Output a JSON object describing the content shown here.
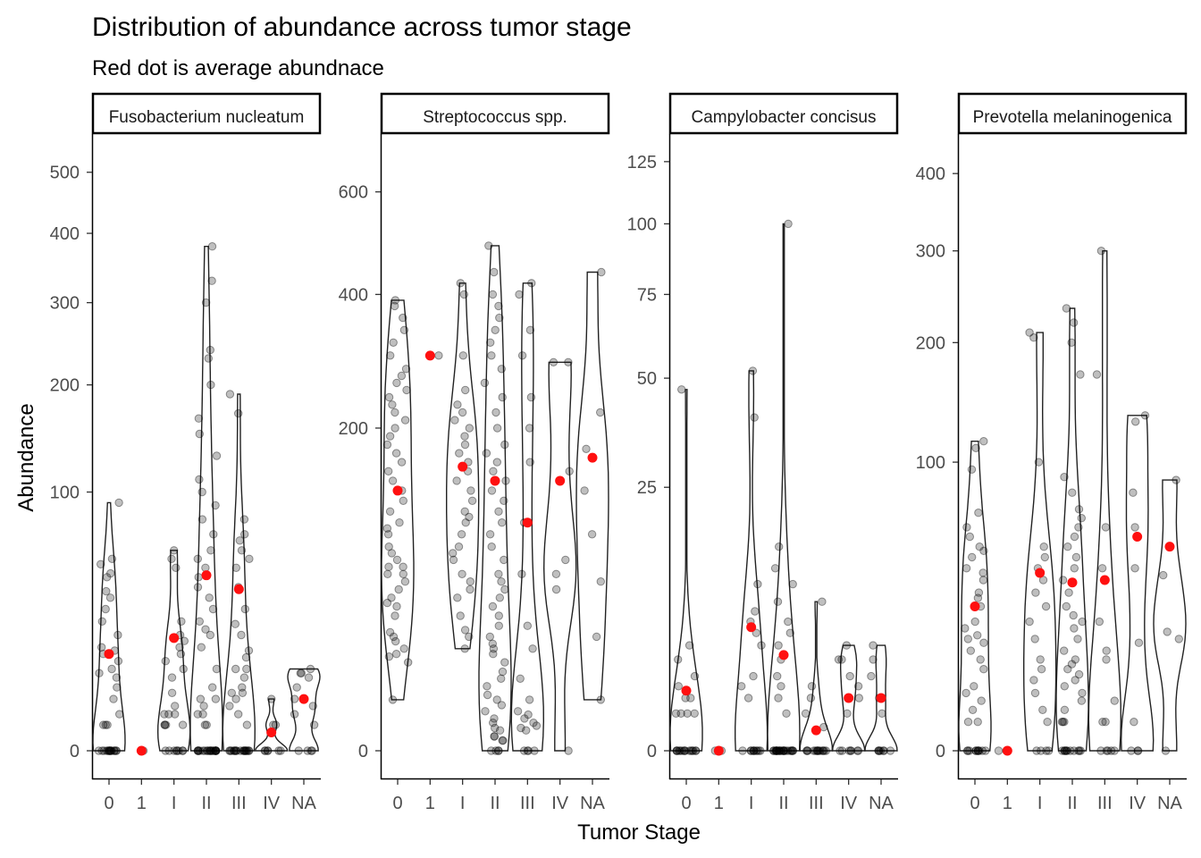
{
  "chart_data": {
    "type": "violin",
    "title": "Distribution of abundance across tumor stage",
    "subtitle": "Red dot is average abundnace",
    "xlabel": "Tumor Stage",
    "ylabel": "Abundance",
    "categories": [
      "0",
      "1",
      "I",
      "II",
      "III",
      "IV",
      "NA"
    ],
    "colors": {
      "points": "#000000",
      "mean": "#ff0000",
      "violin": "#000000",
      "panel_border": "#000000"
    },
    "panels": [
      {
        "name": "Fusobacterium nucleatum",
        "yticks": [
          0,
          100,
          200,
          300,
          400,
          500
        ],
        "ylim": [
          0,
          560
        ],
        "groups": [
          {
            "stage": "0",
            "range": [
              0,
              92
            ],
            "mean": 14,
            "points": [
              0,
              0,
              0,
              0,
              0,
              0,
              0,
              0,
              0,
              0,
              0,
              0,
              0,
              0,
              0,
              1,
              1,
              1,
              2,
              4,
              6,
              8,
              9,
              10,
              12,
              14,
              15,
              16,
              20,
              25,
              30,
              35,
              38,
              45,
              47,
              52,
              55,
              92
            ]
          },
          {
            "stage": "1",
            "range": [
              0,
              0
            ],
            "mean": 0,
            "points": [
              0
            ]
          },
          {
            "stage": "I",
            "range": [
              0,
              60
            ],
            "mean": 19,
            "points": [
              0,
              0,
              0,
              0,
              0,
              0,
              0,
              0,
              1,
              1,
              1,
              1,
              2,
              2,
              2,
              3,
              5,
              8,
              10,
              12,
              14,
              16,
              18,
              20,
              25,
              50,
              55,
              60
            ]
          },
          {
            "stage": "II",
            "range": [
              0,
              380
            ],
            "mean": 46,
            "points": [
              0,
              0,
              0,
              0,
              0,
              0,
              0,
              0,
              0,
              0,
              0,
              0,
              0,
              0,
              0,
              0,
              0,
              0,
              0,
              0,
              0,
              1,
              1,
              2,
              2,
              3,
              4,
              4,
              6,
              10,
              16,
              20,
              22,
              25,
              30,
              35,
              40,
              45,
              50,
              55,
              60,
              70,
              80,
              90,
              100,
              110,
              130,
              150,
              165,
              200,
              230,
              240,
              300,
              330,
              380
            ]
          },
          {
            "stage": "III",
            "range": [
              0,
              190
            ],
            "mean": 39,
            "points": [
              0,
              0,
              0,
              0,
              0,
              0,
              0,
              0,
              0,
              0,
              0,
              0,
              0,
              0,
              0,
              0,
              0,
              0,
              1,
              2,
              3,
              4,
              5,
              5,
              6,
              8,
              10,
              10,
              13,
              15,
              20,
              24,
              30,
              40,
              50,
              55,
              60,
              66,
              70,
              80,
              170,
              190
            ]
          },
          {
            "stage": "IV",
            "range": [
              0,
              4
            ],
            "mean": 0.5,
            "points": [
              0,
              0,
              0,
              0,
              0,
              0,
              1,
              1,
              4
            ]
          },
          {
            "stage": "NA",
            "range": [
              0,
              10
            ],
            "mean": 4,
            "points": [
              0,
              0,
              0,
              0,
              1,
              2,
              3,
              4,
              6,
              8,
              9,
              9,
              10
            ]
          }
        ]
      },
      {
        "name": "Streptococcus spp.",
        "yticks": [
          0,
          200,
          400,
          600
        ],
        "ylim": [
          0,
          720
        ],
        "groups": [
          {
            "stage": "0",
            "range": [
              5,
              390
            ],
            "mean": 130,
            "points": [
              5,
              15,
              17,
              18,
              20,
              23,
              25,
              27,
              35,
              40,
              42,
              45,
              50,
              55,
              60,
              60,
              65,
              65,
              70,
              75,
              80,
              90,
              95,
              100,
              110,
              120,
              130,
              140,
              150,
              160,
              170,
              180,
              190,
              200,
              210,
              220,
              230,
              240,
              250,
              260,
              270,
              280,
              300,
              320,
              340,
              360,
              380,
              390
            ]
          },
          {
            "stage": "1",
            "range": [
              300,
              300
            ],
            "mean": 300,
            "points": [
              300
            ]
          },
          {
            "stage": "I",
            "range": [
              20,
              420
            ],
            "mean": 155,
            "points": [
              20,
              25,
              28,
              35,
              45,
              50,
              55,
              60,
              70,
              75,
              80,
              90,
              100,
              105,
              110,
              120,
              130,
              140,
              150,
              160,
              170,
              180,
              190,
              200,
              210,
              220,
              230,
              250,
              300,
              400,
              420
            ]
          },
          {
            "stage": "II",
            "range": [
              0,
              490
            ],
            "mean": 140,
            "points": [
              0,
              0,
              0,
              0,
              0.2,
              0.2,
              0.4,
              0.4,
              0.8,
              1,
              1.5,
              2,
              3,
              4,
              5,
              6,
              8,
              10,
              12,
              15,
              18,
              20,
              22,
              25,
              30,
              35,
              40,
              45,
              50,
              55,
              60,
              70,
              80,
              90,
              100,
              110,
              120,
              130,
              140,
              150,
              160,
              170,
              180,
              200,
              220,
              240,
              260,
              280,
              300,
              320,
              340,
              360,
              380,
              400,
              440,
              490
            ]
          },
          {
            "stage": "III",
            "range": [
              0,
              420
            ],
            "mean": 100,
            "points": [
              0,
              0,
              0,
              0,
              0.8,
              1,
              1.2,
              1.5,
              2,
              2.5,
              3,
              5,
              10,
              20,
              30,
              60,
              100,
              160,
              200,
              240,
              300,
              340,
              400,
              420
            ]
          },
          {
            "stage": "IV",
            "range": [
              0,
              290
            ],
            "mean": 140,
            "points": [
              0,
              50,
              60,
              70,
              150,
              290,
              290
            ]
          },
          {
            "stage": "NA",
            "range": [
              5,
              440
            ],
            "mean": 165,
            "points": [
              5,
              25,
              55,
              90,
              130,
              175,
              220,
              440
            ]
          }
        ]
      },
      {
        "name": "Campylobacter concisus",
        "yticks": [
          0,
          25,
          50,
          75,
          100,
          125
        ],
        "ylim": [
          0,
          135
        ],
        "groups": [
          {
            "stage": "0",
            "range": [
              0,
              47
            ],
            "mean": 1.3,
            "points": [
              0,
              0,
              0,
              0,
              0,
              0,
              0,
              0,
              0,
              0,
              0,
              0,
              0,
              0,
              0,
              0.5,
              0.5,
              0.5,
              0.5,
              1,
              1,
              1.5,
              2,
              3,
              4,
              47
            ]
          },
          {
            "stage": "1",
            "range": [
              0,
              0
            ],
            "mean": 0,
            "points": [
              0,
              0
            ]
          },
          {
            "stage": "I",
            "range": [
              0,
              52
            ],
            "mean": 5.5,
            "points": [
              0,
              0,
              0,
              0,
              0,
              0,
              0,
              0,
              0,
              0,
              1,
              1.5,
              2,
              4,
              5,
              6,
              7,
              10,
              40,
              52
            ]
          },
          {
            "stage": "II",
            "range": [
              0,
              100
            ],
            "mean": 3.3,
            "points": [
              0,
              0,
              0,
              0,
              0,
              0,
              0,
              0,
              0,
              0,
              0,
              0,
              0,
              0,
              0,
              0,
              0,
              0,
              0,
              0,
              0,
              0,
              0,
              0,
              0.5,
              1,
              1.5,
              2,
              3,
              4,
              5,
              6,
              8,
              10,
              12,
              15,
              100
            ]
          },
          {
            "stage": "III",
            "range": [
              0,
              8
            ],
            "mean": 0.15,
            "points": [
              0,
              0,
              0,
              0,
              0,
              0,
              0,
              0,
              0,
              0,
              0,
              0,
              0,
              0,
              0.2,
              0.5,
              1,
              1.5,
              8
            ]
          },
          {
            "stage": "IV",
            "range": [
              0,
              4
            ],
            "mean": 1,
            "points": [
              0,
              0,
              0,
              0,
              0,
              0,
              0,
              0.5,
              1,
              1.5,
              2,
              3,
              3,
              4
            ]
          },
          {
            "stage": "NA",
            "range": [
              0,
              4
            ],
            "mean": 1,
            "points": [
              0,
              0,
              0,
              0,
              0,
              0,
              0,
              0.5,
              1,
              2,
              3,
              4
            ]
          }
        ]
      },
      {
        "name": "Prevotella melaninogenica",
        "yticks": [
          0,
          100,
          200,
          300,
          400
        ],
        "ylim": [
          0,
          450
        ],
        "groups": [
          {
            "stage": "0",
            "range": [
              0,
              115
            ],
            "mean": 25,
            "points": [
              0,
              0,
              0,
              0,
              0,
              0,
              0,
              0,
              0,
              0,
              0,
              1,
              1,
              2,
              3,
              4,
              5,
              8,
              10,
              12,
              14,
              15,
              16,
              18,
              20,
              25,
              28,
              30,
              35,
              38,
              40,
              45,
              48,
              50,
              55,
              60,
              68,
              95,
              110,
              115
            ]
          },
          {
            "stage": "1",
            "range": [
              0,
              0
            ],
            "mean": 0,
            "points": [
              0,
              0
            ]
          },
          {
            "stage": "I",
            "range": [
              0,
              210
            ],
            "mean": 38,
            "points": [
              0,
              0,
              0,
              0,
              1,
              2,
              4,
              6,
              8,
              10,
              15,
              20,
              25,
              30,
              35,
              40,
              45,
              50,
              100,
              205,
              210
            ]
          },
          {
            "stage": "II",
            "range": [
              0,
              235
            ],
            "mean": 34,
            "points": [
              0,
              0,
              0,
              0,
              0,
              0,
              0,
              0,
              0,
              0,
              0,
              1,
              1,
              1,
              2,
              3,
              4,
              5,
              6,
              7,
              8,
              9,
              10,
              12,
              15,
              18,
              20,
              22,
              25,
              30,
              35,
              40,
              45,
              50,
              55,
              60,
              65,
              70,
              80,
              90,
              170,
              200,
              220,
              235
            ]
          },
          {
            "stage": "III",
            "range": [
              0,
              300
            ],
            "mean": 35,
            "points": [
              0,
              0,
              0,
              0,
              0,
              1,
              1,
              3,
              10,
              12,
              20,
              40,
              60,
              170,
              300
            ]
          },
          {
            "stage": "IV",
            "range": [
              0,
              135
            ],
            "mean": 55,
            "points": [
              0,
              0,
              0,
              1,
              14,
              40,
              60,
              80,
              130,
              135
            ]
          },
          {
            "stage": "NA",
            "range": [
              0,
              88
            ],
            "mean": 50,
            "points": [
              0,
              15,
              17,
              37,
              88
            ]
          }
        ]
      }
    ]
  }
}
